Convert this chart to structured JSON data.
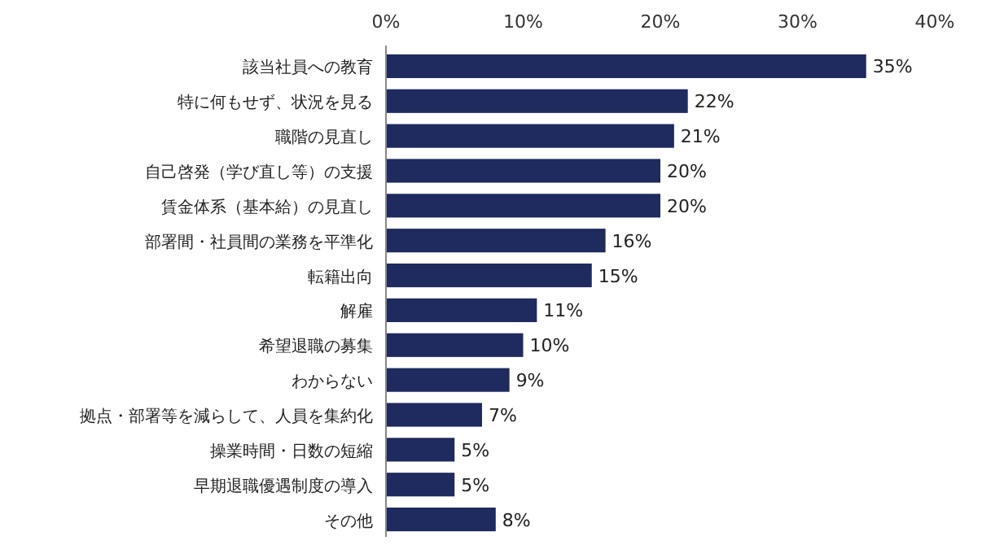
{
  "chart_data": {
    "type": "bar",
    "orientation": "horizontal",
    "categories": [
      "該当社員への教育",
      "特に何もせず、状況を見る",
      "職階の見直し",
      "自己啓発（学び直し等）の支援",
      "賃金体系（基本給）の見直し",
      "部署間・社員間の業務を平準化",
      "転籍出向",
      "解雇",
      "希望退職の募集",
      "わからない",
      "拠点・部署等を減らして、人員を集約化",
      "操業時間・日数の短縮",
      "早期退職優遇制度の導入",
      "その他"
    ],
    "values": [
      35,
      22,
      21,
      20,
      20,
      16,
      15,
      11,
      10,
      9,
      7,
      5,
      5,
      8
    ],
    "value_labels": [
      "35%",
      "22%",
      "21%",
      "20%",
      "20%",
      "16%",
      "15%",
      "11%",
      "10%",
      "9%",
      "7%",
      "5%",
      "5%",
      "8%"
    ],
    "color": "#1f2a5e",
    "xlim": [
      0,
      40
    ],
    "xticks": [
      {
        "value": 0,
        "label": "0%"
      },
      {
        "value": 10,
        "label": "10%"
      },
      {
        "value": 20,
        "label": "20%"
      },
      {
        "value": 30,
        "label": "30%"
      },
      {
        "value": 40,
        "label": "40%"
      }
    ],
    "grid": false
  }
}
